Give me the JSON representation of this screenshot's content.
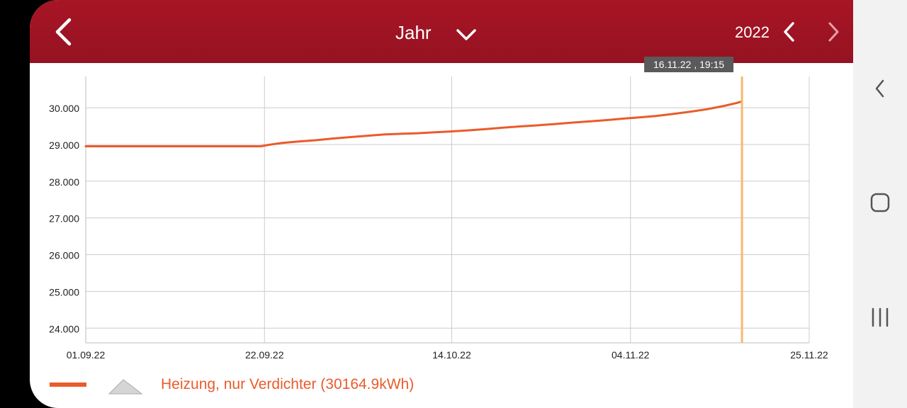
{
  "header": {
    "period": "Jahr",
    "year": "2022"
  },
  "colors": {
    "header": "#a01422",
    "series": "#ea5b2b",
    "cursor": "#f6b970",
    "grid": "#cccccc",
    "tooltip_bg": "#5a5a5a"
  },
  "chart_data": {
    "type": "line",
    "ylim": [
      23600,
      30850
    ],
    "y_ticks": [
      24000,
      25000,
      26000,
      27000,
      28000,
      29000,
      30000
    ],
    "y_tick_labels": [
      "24.000",
      "25.000",
      "26.000",
      "27.000",
      "28.000",
      "29.000",
      "30.000"
    ],
    "x_tick_labels": [
      "01.09.22",
      "22.09.22",
      "14.10.22",
      "04.11.22",
      "25.11.22"
    ],
    "x_tick_days": [
      0,
      21,
      43,
      64,
      85
    ],
    "xlim_days": [
      0,
      84.4
    ],
    "series": [
      {
        "name": "Heizung, nur Verdichter (30164.9kWh)",
        "points": [
          [
            0,
            28950
          ],
          [
            10,
            28950
          ],
          [
            20.6,
            28950
          ],
          [
            21.5,
            28990
          ],
          [
            23,
            29040
          ],
          [
            25,
            29080
          ],
          [
            27,
            29115
          ],
          [
            29,
            29160
          ],
          [
            31,
            29200
          ],
          [
            33,
            29235
          ],
          [
            35,
            29270
          ],
          [
            37,
            29290
          ],
          [
            39,
            29305
          ],
          [
            41,
            29330
          ],
          [
            43,
            29355
          ],
          [
            45,
            29385
          ],
          [
            47,
            29420
          ],
          [
            49,
            29455
          ],
          [
            51,
            29490
          ],
          [
            53,
            29520
          ],
          [
            55,
            29555
          ],
          [
            57,
            29590
          ],
          [
            59,
            29625
          ],
          [
            61,
            29660
          ],
          [
            63,
            29700
          ],
          [
            65,
            29735
          ],
          [
            67,
            29775
          ],
          [
            69,
            29830
          ],
          [
            71,
            29890
          ],
          [
            73,
            29960
          ],
          [
            75,
            30050
          ],
          [
            76.5,
            30130
          ],
          [
            77,
            30164.9
          ]
        ]
      }
    ],
    "cursor": {
      "day": 77.1,
      "label": "16.11.22 , 19:15"
    },
    "grid": true,
    "legend_position": "bottom-left"
  },
  "legend": {
    "label": "Heizung, nur Verdichter (30164.9kWh)"
  },
  "icons": {
    "back": "chevron-left-icon",
    "period_dropdown": "chevron-down-icon",
    "prev_year": "chevron-left-icon",
    "next_year": "chevron-right-icon",
    "area_toggle": "mountain-icon",
    "nav_back": "chevron-left-icon",
    "nav_home": "rounded-square-icon",
    "nav_recent": "three-bars-icon"
  }
}
